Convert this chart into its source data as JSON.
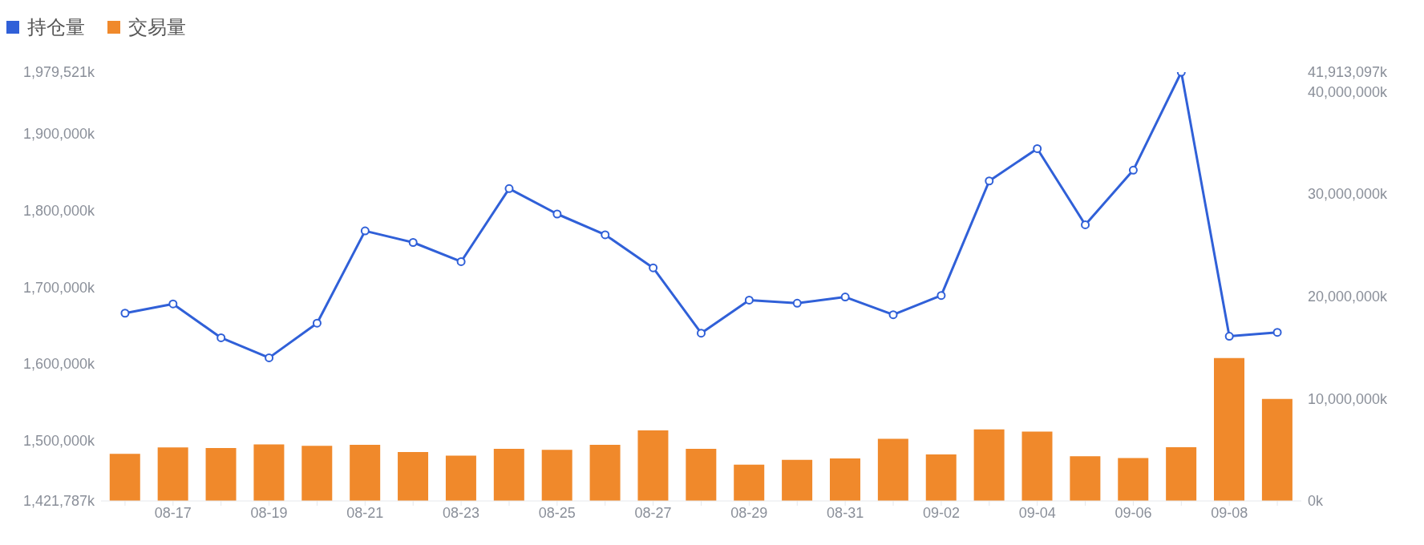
{
  "chart_data": {
    "type": "line",
    "categories": [
      null,
      "08-17",
      null,
      "08-19",
      null,
      "08-21",
      null,
      "08-23",
      null,
      "08-25",
      null,
      "08-27",
      null,
      "08-29",
      null,
      "08-31",
      null,
      "09-02",
      null,
      "09-04",
      null,
      "09-06",
      null,
      "09-08",
      null
    ],
    "series": [
      {
        "name": "持仓量",
        "color": "#3060d8",
        "values": [
          1666000,
          1678000,
          1634000,
          1608000,
          1653000,
          1773000,
          1758000,
          1733000,
          1828000,
          1795000,
          1768000,
          1725000,
          1640000,
          1683000,
          1679000,
          1687000,
          1664000,
          1689000,
          1838000,
          1880000,
          1781000,
          1852000,
          1979521,
          1636000,
          1641000
        ]
      },
      {
        "name": "交易量",
        "type": "bar",
        "axis": "y2",
        "color": "#f0892b",
        "values": [
          4600000,
          5220000,
          5180000,
          5530000,
          5390000,
          5480000,
          4780000,
          4430000,
          5090000,
          5000000,
          5480000,
          6890000,
          5100000,
          3540000,
          4020000,
          4150000,
          6070000,
          4540000,
          6990000,
          6770000,
          4370000,
          4190000,
          5240000,
          13970000,
          9960000
        ]
      }
    ],
    "ylim": [
      1421787,
      1979521
    ],
    "yticks": [
      {
        "value": 1421787,
        "label": "1,421,787k"
      },
      {
        "value": 1500000,
        "label": "1,500,000k"
      },
      {
        "value": 1600000,
        "label": "1,600,000k"
      },
      {
        "value": 1700000,
        "label": "1,700,000k"
      },
      {
        "value": 1800000,
        "label": "1,800,000k"
      },
      {
        "value": 1900000,
        "label": "1,900,000k"
      },
      {
        "value": 1979521,
        "label": "1,979,521k"
      }
    ],
    "y2lim": [
      0,
      41913097
    ],
    "y2ticks": [
      {
        "value": 0,
        "label": "0k"
      },
      {
        "value": 10000000,
        "label": "10,000,000k"
      },
      {
        "value": 20000000,
        "label": "20,000,000k"
      },
      {
        "value": 30000000,
        "label": "30,000,000k"
      },
      {
        "value": 40000000,
        "label": "40,000,000k"
      },
      {
        "value": 41913097,
        "label": "41,913,097k"
      }
    ],
    "legend": "top left",
    "marker": "circle",
    "grid": false
  }
}
